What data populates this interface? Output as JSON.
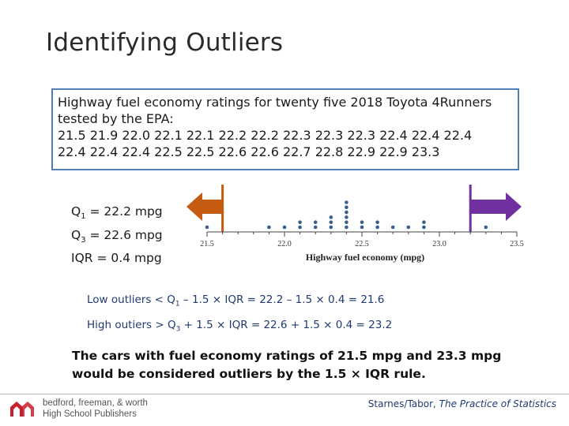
{
  "title": "Identifying Outliers",
  "data_box": {
    "lines": [
      "Highway fuel economy ratings for twenty five 2018 Toyota 4Runners",
      "tested by the EPA:",
      "21.5 21.9 22.0 22.1 22.1 22.2 22.2 22.3 22.3 22.3 22.4 22.4 22.4",
      "22.4 22.4 22.4 22.5 22.5 22.6 22.6 22.7 22.8 22.9 22.9 23.3"
    ]
  },
  "stats": {
    "q1_prefix": "Q",
    "q1_sub": "1",
    "q1_rest": " = 22.2 mpg",
    "q3_prefix": "Q",
    "q3_sub": "3",
    "q3_rest": " = 22.6 mpg",
    "iqr": "IQR = 0.4 mpg"
  },
  "chart_data": {
    "type": "scatter",
    "subtype": "dotplot",
    "xlabel": "Highway fuel economy (mpg)",
    "xlim": [
      21.5,
      23.5
    ],
    "ticks": [
      "21.5",
      "22.0",
      "22.5",
      "23.0",
      "23.5"
    ],
    "values": [
      21.5,
      21.9,
      22.0,
      22.1,
      22.1,
      22.2,
      22.2,
      22.3,
      22.3,
      22.3,
      22.4,
      22.4,
      22.4,
      22.4,
      22.4,
      22.4,
      22.5,
      22.5,
      22.6,
      22.6,
      22.7,
      22.8,
      22.9,
      22.9,
      23.3
    ],
    "fences": {
      "low": 21.6,
      "high": 23.2
    },
    "colors": {
      "dots": "#3b5e8c",
      "low_arrow": "#c55a11",
      "high_arrow": "#7030a0"
    }
  },
  "rules": {
    "low": {
      "pre": "Low outliers < Q",
      "sub": "1",
      "post": " – 1.5 × IQR = 22.2 – 1.5 × 0.4 = 21.6"
    },
    "high": {
      "pre": "High outiers > Q",
      "sub": "3",
      "post": " + 1.5 × IQR = 22.6 + 1.5 × 0.4 = 23.2"
    }
  },
  "conclusion": {
    "line1": "The cars with fuel economy ratings of 21.5 mpg and 23.3 mpg",
    "line2": "would be considered outliers by the 1.5 × IQR rule."
  },
  "footer": {
    "publisher_line1": "bedford, freeman, & worth",
    "publisher_line2": "High School Publishers",
    "logo_colors": {
      "primary": "#c8202f"
    },
    "credit_authors": "Starnes/Tabor, ",
    "credit_title": "The Practice of Statistics"
  }
}
